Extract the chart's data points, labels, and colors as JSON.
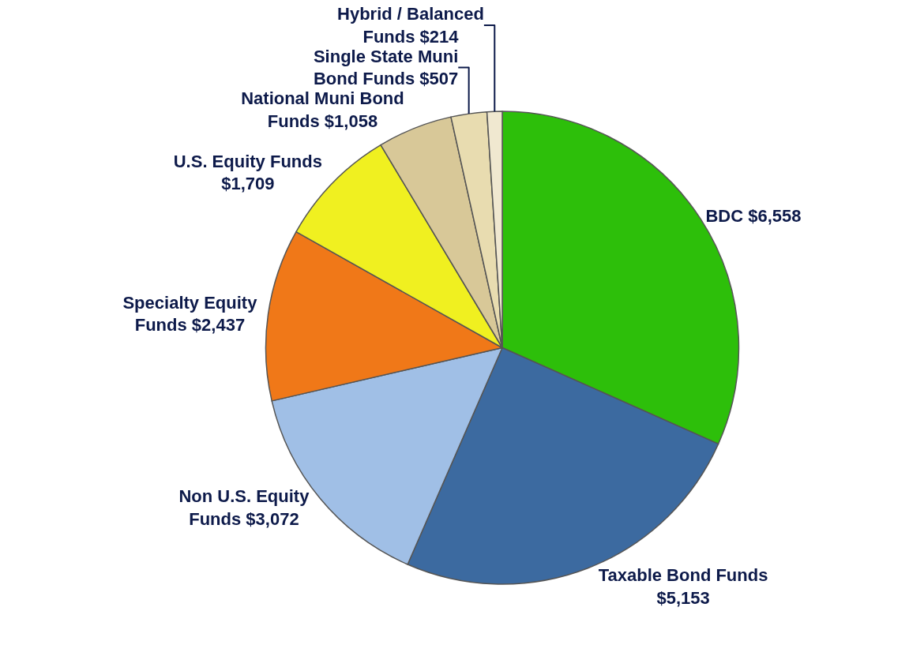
{
  "chart_data": {
    "type": "pie",
    "categories": [
      "BDC",
      "Taxable Bond Funds",
      "Non U.S. Equity Funds",
      "Specialty Equity Funds",
      "U.S. Equity Funds",
      "National Muni Bond Funds",
      "Single State Muni Bond Funds",
      "Hybrid / Balanced Funds"
    ],
    "values": [
      6558,
      5153,
      3072,
      2437,
      1709,
      1058,
      507,
      214
    ],
    "value_labels": [
      "$6,558",
      "$5,153",
      "$3,072",
      "$2,437",
      "$1,709",
      "$1,058",
      "$507",
      "$214"
    ],
    "colors": [
      "#2dbf0a",
      "#3c6aa0",
      "#a0bfe6",
      "#f07818",
      "#f0f020",
      "#d8c898",
      "#e8dcb0",
      "#f0e8d0"
    ]
  }
}
